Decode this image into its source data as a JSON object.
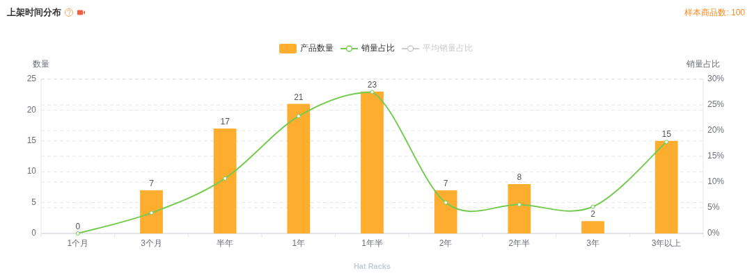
{
  "chart_data": {
    "type": "bar",
    "title": "上架时间分布",
    "annotations": [
      "样本商品数: 100"
    ],
    "xlabel": "Hat Racks",
    "ylabel": "数量",
    "y2label": "销量占比",
    "categories": [
      "1个月",
      "3个月",
      "半年",
      "1年",
      "1年半",
      "2年",
      "2年半",
      "3年",
      "3年以上"
    ],
    "series": [
      {
        "name": "产品数量",
        "color": "#ffad2f",
        "values": [
          0,
          7,
          17,
          21,
          23,
          7,
          8,
          2,
          15
        ],
        "value_labels": [
          "0",
          "7",
          "17",
          "21",
          "23",
          "7",
          "8",
          "2",
          "15"
        ]
      },
      {
        "name": "销量占比",
        "type": "line",
        "axis": "y2",
        "color": "#74cb4f",
        "marker": "circle",
        "values": [
          0,
          4.0,
          10.7,
          22.8,
          27.5,
          6.0,
          5.6,
          5.2,
          17.8
        ]
      },
      {
        "name": "平均销量占比",
        "type": "line",
        "axis": "y2",
        "color": "#cccccc",
        "marker": "circle",
        "values": [
          null,
          null,
          null,
          null,
          null,
          null,
          null,
          null,
          null
        ]
      }
    ],
    "ylim": [
      0,
      25
    ],
    "yticks": [
      0,
      5,
      10,
      15,
      20,
      25
    ],
    "y2lim": [
      0,
      30
    ],
    "y2ticks": [
      {
        "value": 0,
        "label": "0%"
      },
      {
        "value": 5,
        "label": "5%"
      },
      {
        "value": 10,
        "label": "10%"
      },
      {
        "value": 15,
        "label": "15%"
      },
      {
        "value": 20,
        "label": "20%"
      },
      {
        "value": 25,
        "label": "25%"
      },
      {
        "value": 30,
        "label": "30%"
      }
    ],
    "grid": true,
    "legend": "top"
  }
}
